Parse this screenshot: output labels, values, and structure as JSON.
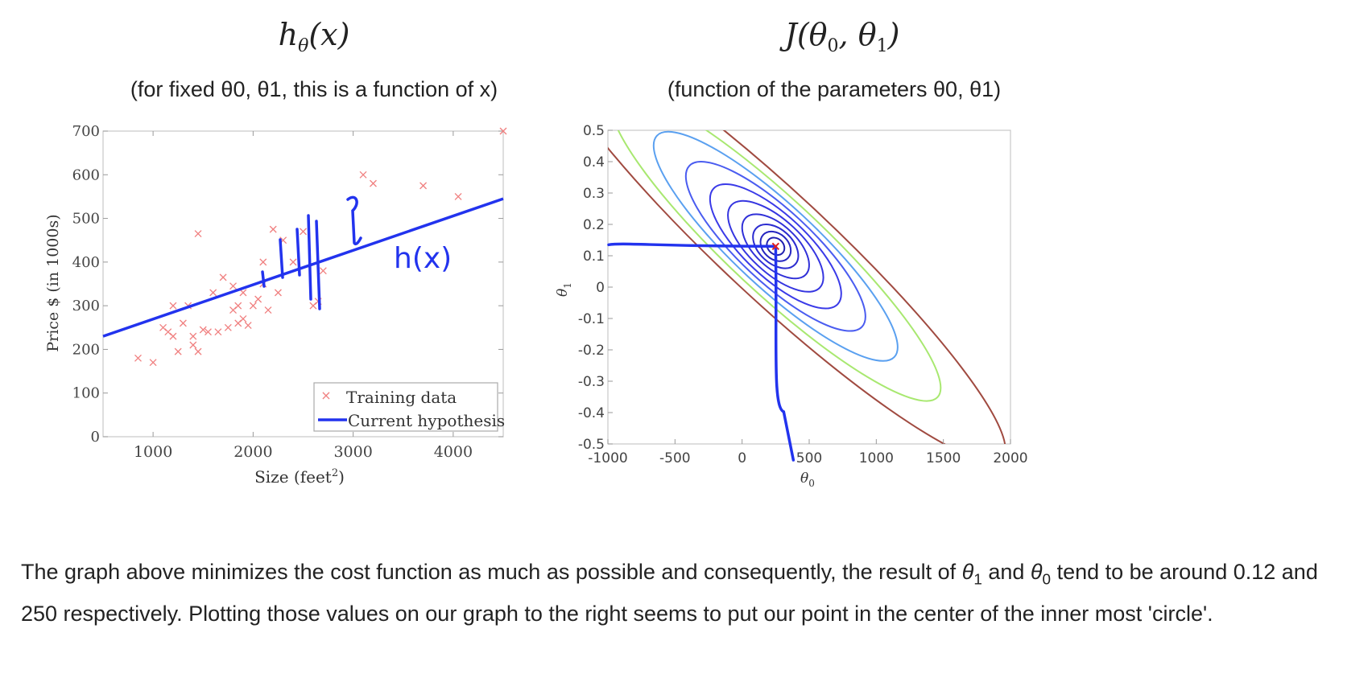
{
  "chart_data": [
    {
      "type": "scatter",
      "title": "h_θ(x)",
      "subtitle": "(for fixed θ0, θ1, this is a function of x)",
      "xlabel": "Size (feet²)",
      "ylabel": "Price $ (in 1000s)",
      "xlim": [
        500,
        4500
      ],
      "ylim": [
        0,
        700
      ],
      "xticks": [
        "1000",
        "2000",
        "3000",
        "4000"
      ],
      "yticks": [
        "0",
        "100",
        "200",
        "300",
        "400",
        "500",
        "600",
        "700"
      ],
      "legend": {
        "placement": "bottom-right",
        "entries": [
          "Training data",
          "Current hypothesis"
        ]
      },
      "series": [
        {
          "name": "Training data",
          "kind": "scatter",
          "color": "#f08080",
          "x": [
            850,
            1000,
            1100,
            1150,
            1200,
            1200,
            1250,
            1300,
            1350,
            1400,
            1400,
            1450,
            1500,
            1550,
            1600,
            1650,
            1700,
            1750,
            1800,
            1800,
            1850,
            1850,
            1900,
            1900,
            1950,
            2000,
            2050,
            2100,
            2100,
            2150,
            2200,
            2250,
            2300,
            2400,
            2500,
            2600,
            2650,
            2700,
            3100,
            3200,
            3700,
            4050,
            4500,
            1450
          ],
          "y": [
            180,
            170,
            250,
            240,
            300,
            230,
            195,
            260,
            300,
            210,
            230,
            195,
            245,
            240,
            330,
            240,
            365,
            250,
            290,
            345,
            260,
            300,
            330,
            270,
            255,
            300,
            315,
            400,
            350,
            290,
            475,
            330,
            450,
            400,
            470,
            300,
            310,
            380,
            600,
            580,
            575,
            550,
            700,
            465
          ]
        },
        {
          "name": "Current hypothesis",
          "kind": "line",
          "color": "#2233ee",
          "x": [
            500,
            4500
          ],
          "y": [
            230,
            545
          ]
        }
      ],
      "annotations": [
        "h(x)"
      ]
    },
    {
      "type": "contour",
      "title": "J(θ0, θ1)",
      "subtitle": "(function of the parameters θ0, θ1)",
      "xlabel": "θ0",
      "ylabel": "θ1",
      "xlim": [
        -1000,
        2000
      ],
      "ylim": [
        -0.5,
        0.5
      ],
      "xticks": [
        "-1000",
        "-500",
        "0",
        "500",
        "1000",
        "1500",
        "2000"
      ],
      "yticks": [
        "-0.5",
        "-0.4",
        "-0.3",
        "-0.2",
        "-0.1",
        "0",
        "0.1",
        "0.2",
        "0.3",
        "0.4",
        "0.5"
      ],
      "minimum": {
        "theta0": 250,
        "theta1": 0.13
      },
      "levels": [
        {
          "color": "#2020b0",
          "rx": 130,
          "ry": 0.055
        },
        {
          "color": "#2626c0",
          "rx": 230,
          "ry": 0.09
        },
        {
          "color": "#2c2cd0",
          "rx": 360,
          "ry": 0.12
        },
        {
          "color": "#3030d8",
          "rx": 560,
          "ry": 0.15
        },
        {
          "color": "#3535e0",
          "rx": 820,
          "ry": 0.185
        },
        {
          "color": "#3a3ae8",
          "rx": 1150,
          "ry": 0.22
        },
        {
          "color": "#4a5cf0",
          "rx": 1600,
          "ry": 0.255
        },
        {
          "color": "#5aa0f0",
          "rx": 2200,
          "ry": 0.29
        },
        {
          "color": "#a8e870",
          "rx": 3000,
          "ry": 0.33
        },
        {
          "color": "#a04a40",
          "rx": 4200,
          "ry": 0.38
        }
      ],
      "guide_color": "#2233ee"
    }
  ],
  "paragraph": {
    "part1": "The graph above minimizes the cost function as much as possible and consequently, the result of ",
    "theta1": "θ",
    "sub1": "1",
    "and": " and ",
    "theta0": "θ",
    "sub0": "0",
    "part2": " tend to be around 0.12 and 250 respectively. Plotting those values on our graph to the right seems to put our point in the center of the inner most 'circle'."
  }
}
